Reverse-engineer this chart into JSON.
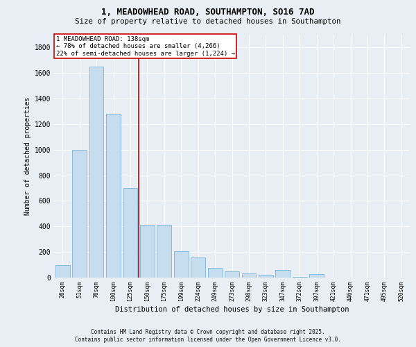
{
  "title_line1": "1, MEADOWHEAD ROAD, SOUTHAMPTON, SO16 7AD",
  "title_line2": "Size of property relative to detached houses in Southampton",
  "xlabel": "Distribution of detached houses by size in Southampton",
  "ylabel": "Number of detached properties",
  "categories": [
    "26sqm",
    "51sqm",
    "76sqm",
    "100sqm",
    "125sqm",
    "150sqm",
    "175sqm",
    "199sqm",
    "224sqm",
    "249sqm",
    "273sqm",
    "298sqm",
    "323sqm",
    "347sqm",
    "372sqm",
    "397sqm",
    "421sqm",
    "446sqm",
    "471sqm",
    "495sqm",
    "520sqm"
  ],
  "values": [
    100,
    1000,
    1650,
    1280,
    700,
    410,
    410,
    205,
    155,
    75,
    50,
    30,
    20,
    60,
    5,
    25,
    0,
    0,
    0,
    0,
    0
  ],
  "bar_color": "#c6dcef",
  "bar_edge_color": "#7ab4d8",
  "vline_color": "#cc0000",
  "vline_x": 4.5,
  "annotation_text": "1 MEADOWHEAD ROAD: 138sqm\n← 78% of detached houses are smaller (4,266)\n22% of semi-detached houses are larger (1,224) →",
  "ylim": [
    0,
    1900
  ],
  "yticks": [
    0,
    200,
    400,
    600,
    800,
    1000,
    1200,
    1400,
    1600,
    1800
  ],
  "footer_text": "Contains HM Land Registry data © Crown copyright and database right 2025.\nContains public sector information licensed under the Open Government Licence v3.0.",
  "bg_color": "#e8eef4",
  "grid_color": "#ffffff"
}
